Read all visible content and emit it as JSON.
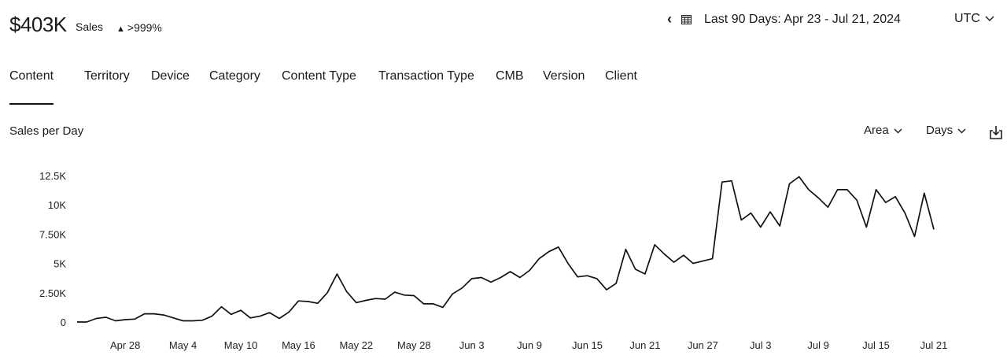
{
  "header": {
    "total": "$403K",
    "total_label": "Sales",
    "delta": ">999%",
    "range_label": "Last 90 Days: Apr 23 - Jul 21, 2024",
    "timezone": "UTC"
  },
  "tabs": [
    "Content",
    "Territory",
    "Device",
    "Category",
    "Content Type",
    "Transaction Type",
    "CMB",
    "Version",
    "Client"
  ],
  "section": {
    "title": "Sales per Day",
    "chart_type_label": "Area",
    "granularity_label": "Days"
  },
  "chart_data": {
    "type": "line",
    "title": "Sales per Day",
    "xlabel": "",
    "ylabel": "",
    "ylim": [
      0,
      12500
    ],
    "yticks": [
      {
        "value": 0,
        "label": "0"
      },
      {
        "value": 2500,
        "label": "2.50K"
      },
      {
        "value": 5000,
        "label": "5K"
      },
      {
        "value": 7500,
        "label": "7.50K"
      },
      {
        "value": 10000,
        "label": "10K"
      },
      {
        "value": 12500,
        "label": "12.5K"
      }
    ],
    "xticks": [
      "Apr 28",
      "May 4",
      "May 10",
      "May 16",
      "May 22",
      "May 28",
      "Jun 3",
      "Jun 9",
      "Jun 15",
      "Jun 21",
      "Jun 27",
      "Jul 3",
      "Jul 9",
      "Jul 15",
      "Jul 21"
    ],
    "grid": false,
    "series": [
      {
        "values": [
          0,
          0,
          300,
          400,
          100,
          200,
          250,
          700,
          700,
          600,
          350,
          100,
          100,
          150,
          500,
          1300,
          650,
          1000,
          350,
          500,
          800,
          300,
          850,
          1800,
          1750,
          1600,
          2500,
          4100,
          2600,
          1650,
          1850,
          2000,
          1950,
          2550,
          2300,
          2250,
          1550,
          1550,
          1250,
          2400,
          2900,
          3700,
          3800,
          3400,
          3800,
          4300,
          3800,
          4400,
          5400,
          6000,
          6400,
          5000,
          3850,
          3950,
          3700,
          2750,
          3300,
          6200,
          4500,
          4100,
          6600,
          5800,
          5100,
          5700,
          5000,
          5200,
          5400,
          11950,
          12050,
          8700,
          9300,
          8100,
          9400,
          8200,
          11800,
          12400,
          11300,
          10600,
          9800,
          11300,
          11300,
          10400,
          8100,
          11300,
          10200,
          10700,
          9300,
          7300,
          11000,
          7900
        ]
      }
    ]
  }
}
